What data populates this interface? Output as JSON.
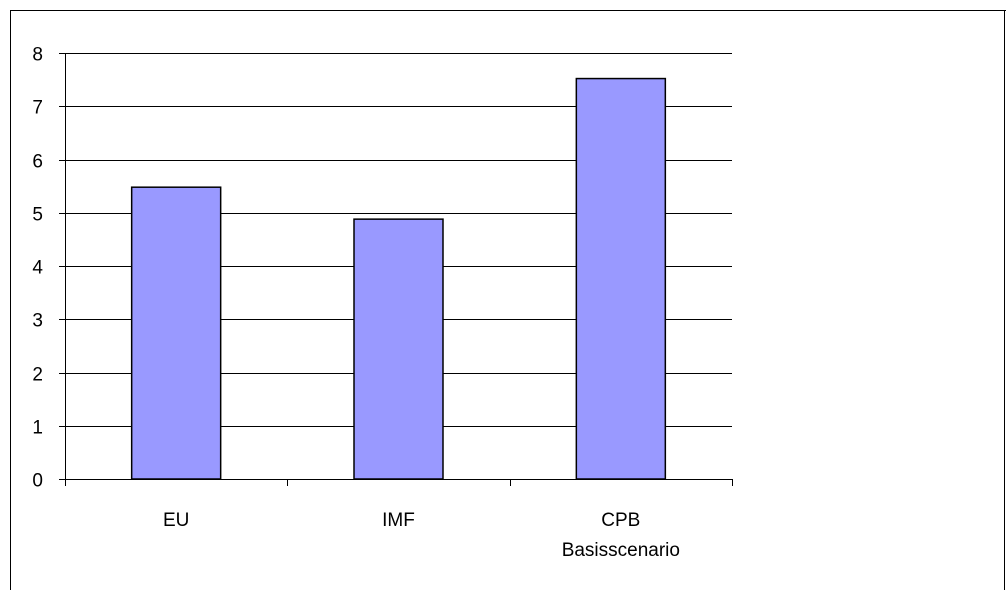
{
  "chart_data": {
    "type": "bar",
    "categories": [
      "EU",
      "IMF",
      "CPB Basisscenario"
    ],
    "category_lines": [
      [
        "EU"
      ],
      [
        "IMF"
      ],
      [
        "CPB",
        "Basisscenario"
      ]
    ],
    "values": [
      5.48,
      4.88,
      7.52
    ],
    "ylim": [
      0,
      8
    ],
    "yticks": [
      0,
      1,
      2,
      3,
      4,
      5,
      6,
      7,
      8
    ],
    "title": "",
    "xlabel": "",
    "ylabel": "",
    "grid": true,
    "legend": "none",
    "bar_color": "#9999FF",
    "bar_edge_color": "#000000",
    "grid_color": "#000000"
  }
}
